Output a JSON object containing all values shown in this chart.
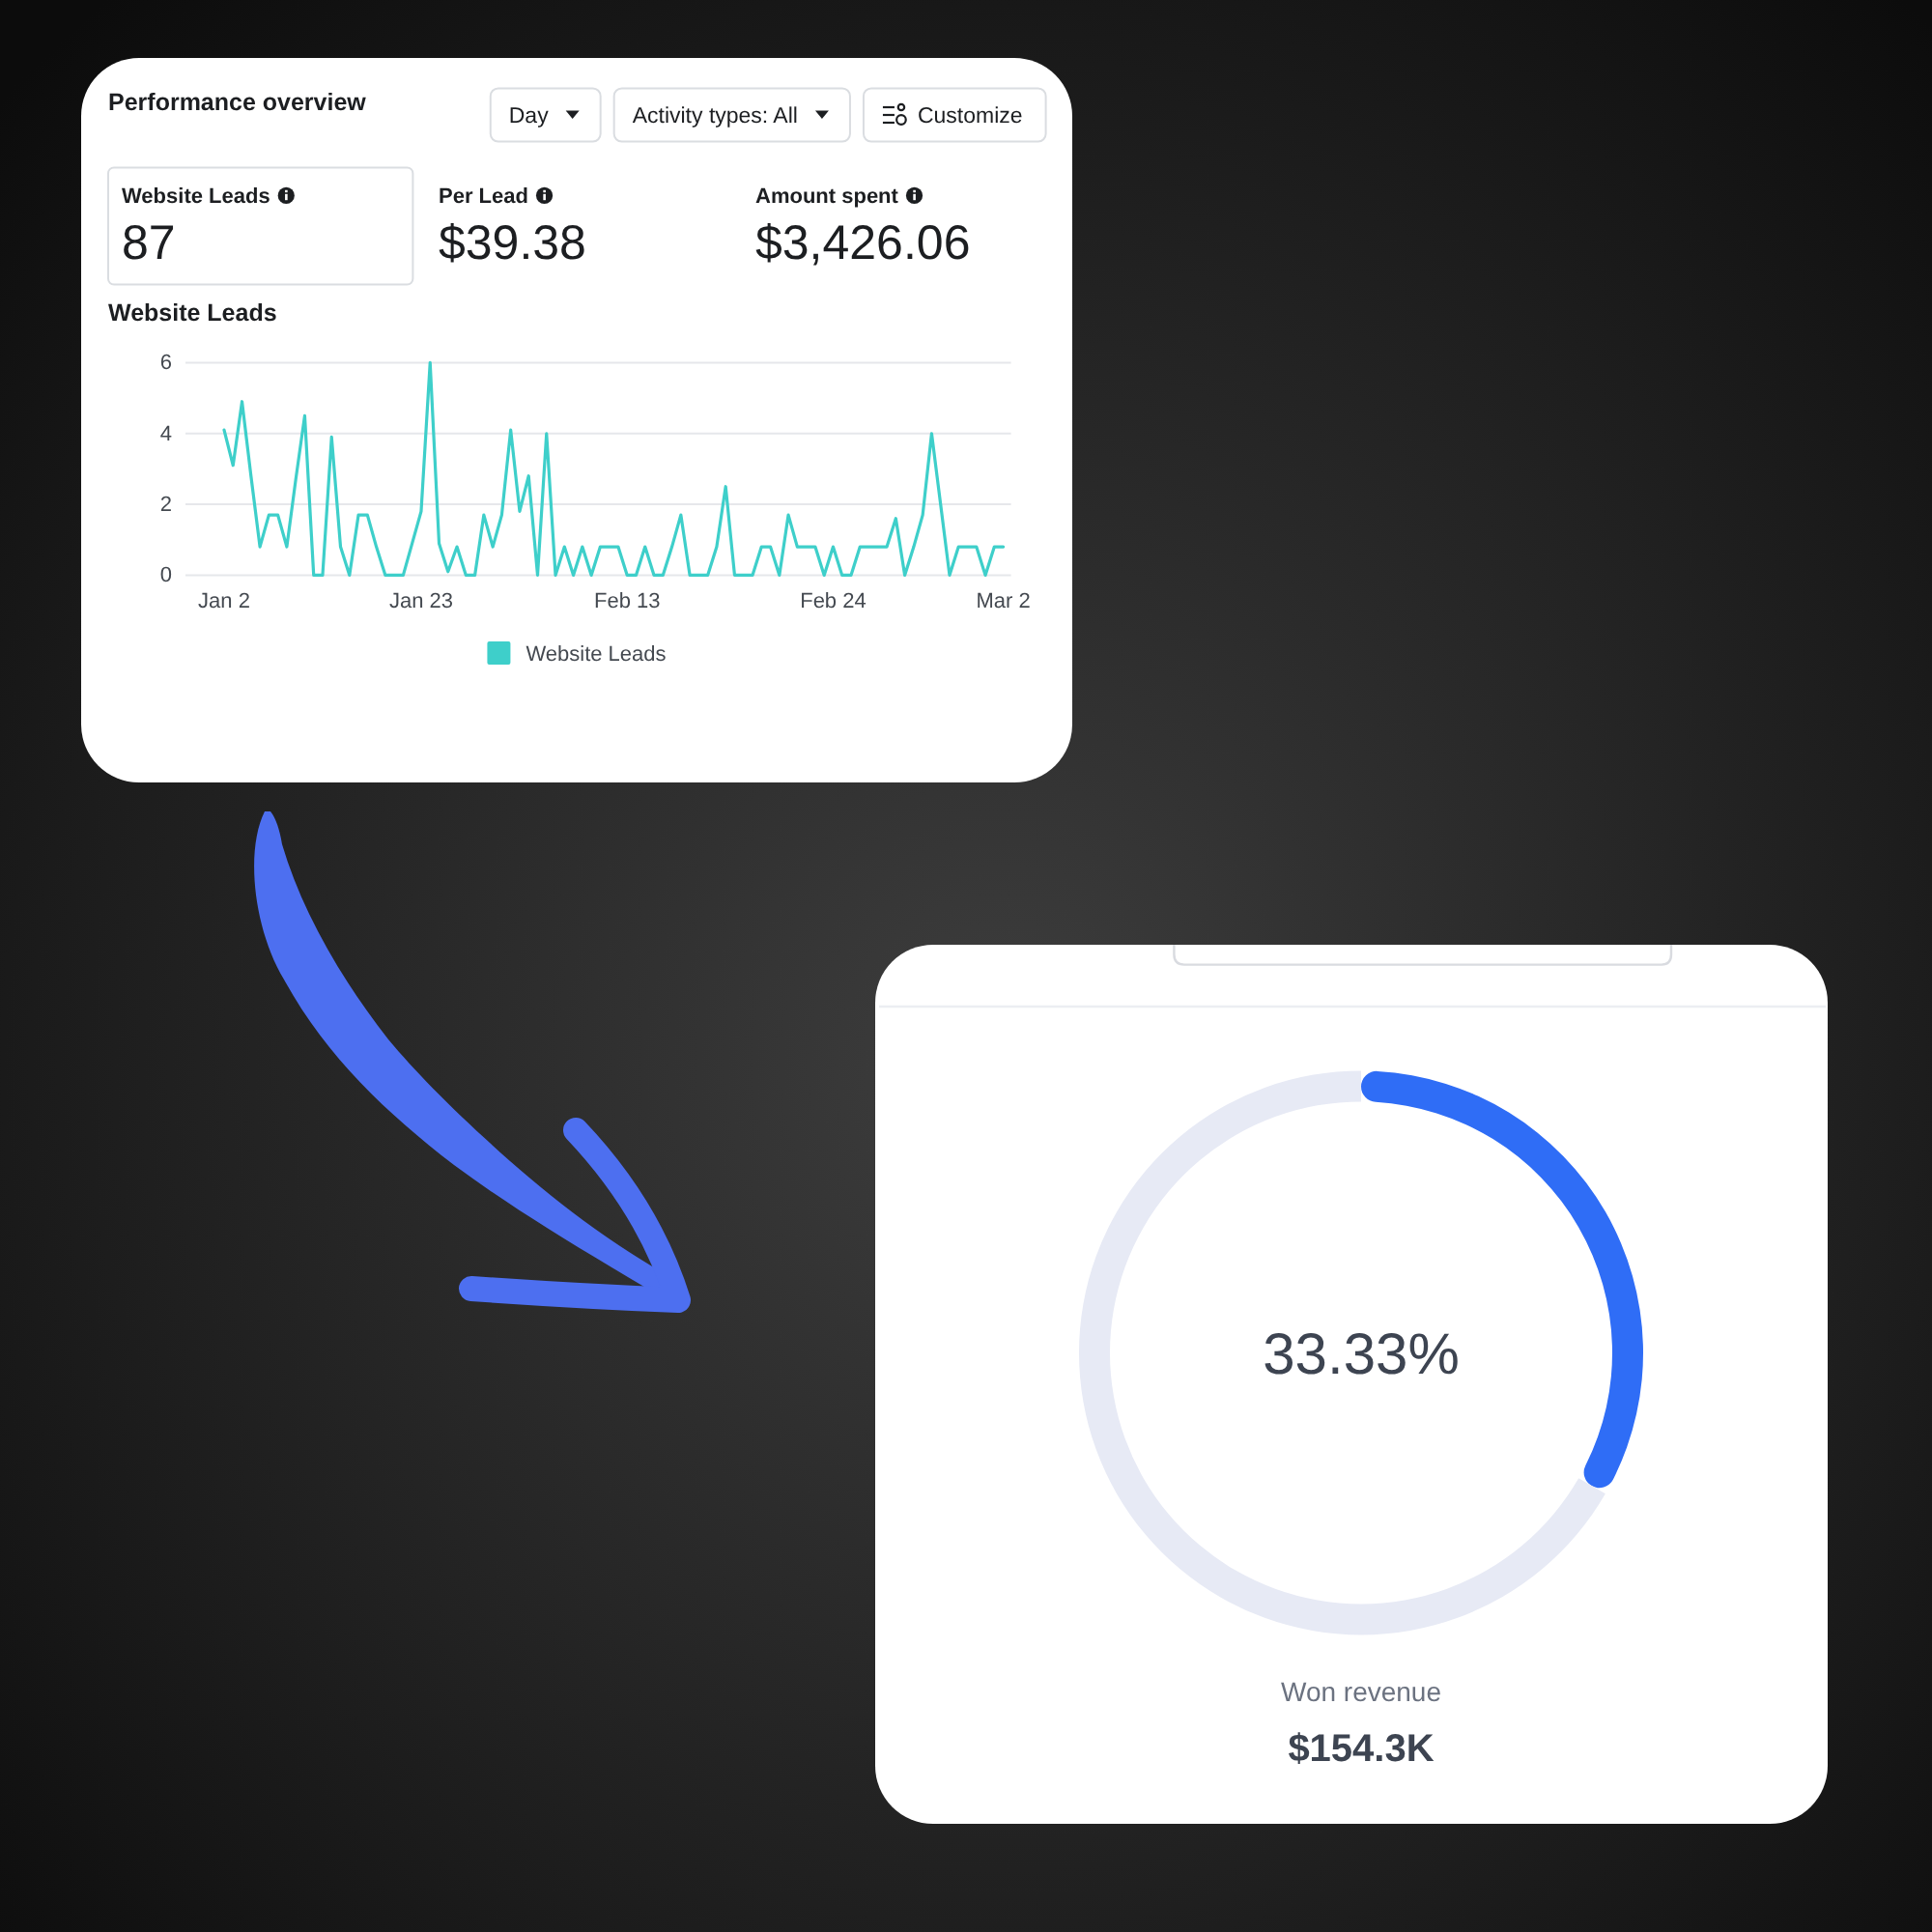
{
  "chart_data": [
    {
      "type": "other",
      "title": "Performance overview",
      "annotations": [
        "Day",
        "Activity types: All",
        "Customize",
        "Website Leads",
        "87",
        "Per Lead",
        "$39.38",
        "Amount spent",
        "$3,426.06"
      ]
    },
    {
      "type": "line",
      "title": "Website Leads",
      "categories": [
        "Jan 2",
        null,
        null,
        null,
        null,
        null,
        null,
        null,
        null,
        null,
        null,
        null,
        null,
        null,
        null,
        null,
        null,
        null,
        null,
        null,
        null,
        null,
        "Jan 23",
        null,
        null,
        null,
        null,
        null,
        null,
        null,
        null,
        null,
        null,
        null,
        null,
        null,
        null,
        null,
        null,
        null,
        null,
        null,
        null,
        null,
        null,
        "Feb 13",
        null,
        null,
        null,
        null,
        null,
        null,
        null,
        null,
        null,
        null,
        null,
        null,
        null,
        null,
        null,
        null,
        null,
        null,
        null,
        null,
        null,
        null,
        "Feb 24",
        null,
        null,
        null,
        null,
        null,
        null,
        null,
        null,
        null,
        null,
        null,
        null,
        null,
        null,
        null,
        null,
        null,
        null,
        "Mar 2"
      ],
      "series": [
        {
          "name": "Website Leads",
          "color": "#3ecfca",
          "values": [
            4.1,
            3.1,
            4.9,
            2.8,
            0.8,
            1.7,
            1.7,
            0.8,
            2.7,
            4.5,
            0,
            0,
            3.9,
            0.8,
            0,
            1.7,
            1.7,
            0.8,
            0,
            0,
            0,
            0.9,
            1.8,
            6,
            0.9,
            0.1,
            0.8,
            0,
            0,
            1.7,
            0.8,
            1.7,
            4.1,
            1.8,
            2.8,
            0,
            4,
            0,
            0.8,
            0,
            0.8,
            0,
            0.8,
            0.8,
            0.8,
            0,
            0,
            0.8,
            0,
            0,
            0.8,
            1.7,
            0,
            0,
            0,
            0.8,
            2.5,
            0,
            0,
            0,
            0.8,
            0.8,
            0,
            1.7,
            0.8,
            0.8,
            0.8,
            0,
            0.8,
            0,
            0,
            0.8,
            0.8,
            0.8,
            0.8,
            1.6,
            0,
            0.8,
            1.7,
            4,
            2,
            0,
            0.8,
            0.8,
            0.8,
            0,
            0.8,
            0.8
          ]
        }
      ],
      "ylim": [
        0,
        6
      ],
      "yticks": [
        0,
        2,
        4,
        6
      ],
      "grid": "y",
      "legend": "bottom"
    },
    {
      "type": "donut",
      "categories": [
        null,
        null
      ],
      "values": [
        33.33,
        66.67
      ],
      "colors": [
        "#2f6df6",
        "#e7eaf5"
      ],
      "annotations": [
        "33.33%",
        "Won revenue",
        "$154.3K"
      ]
    }
  ]
}
